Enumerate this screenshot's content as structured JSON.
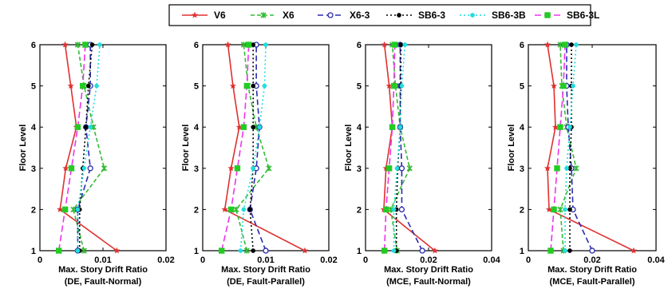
{
  "chart_data": [
    {
      "type": "line",
      "xlabel": "Max. Story Drift Ratio",
      "xlabel2": "(DE, Fault-Normal)",
      "ylabel": "Floor Level",
      "xlim": [
        0,
        0.02
      ],
      "ylim": [
        1,
        6
      ],
      "xticks": [
        "0",
        "0.01",
        "0.02"
      ],
      "yticks": [
        "1",
        "2",
        "3",
        "4",
        "5",
        "6"
      ],
      "series": [
        {
          "name": "V6",
          "x": [
            0.0122,
            0.0032,
            0.0041,
            0.0058,
            0.0049,
            0.004
          ]
        },
        {
          "name": "X6",
          "x": [
            0.007,
            0.0053,
            0.0102,
            0.0085,
            0.007,
            0.006
          ]
        },
        {
          "name": "X6-3",
          "x": [
            0.006,
            0.006,
            0.008,
            0.0073,
            0.008,
            0.008
          ]
        },
        {
          "name": "SB6-3",
          "x": [
            0.0063,
            0.0063,
            0.0068,
            0.0073,
            0.0077,
            0.0083
          ]
        },
        {
          "name": "SB6-3B",
          "x": [
            0.006,
            0.006,
            0.007,
            0.008,
            0.009,
            0.0095
          ]
        },
        {
          "name": "SB6-3L",
          "x": [
            0.003,
            0.004,
            0.005,
            0.006,
            0.0068,
            0.0072
          ]
        }
      ]
    },
    {
      "type": "line",
      "xlabel": "Max. Story Drift Ratio",
      "xlabel2": "(DE, Fault-Parallel)",
      "ylabel": "Floor Level",
      "xlim": [
        0,
        0.02
      ],
      "ylim": [
        1,
        6
      ],
      "xticks": [
        "0",
        "0.01",
        "0.02"
      ],
      "yticks": [
        "1",
        "2",
        "3",
        "4",
        "5",
        "6"
      ],
      "series": [
        {
          "name": "V6",
          "x": [
            0.0162,
            0.0035,
            0.0045,
            0.0058,
            0.0048,
            0.004
          ]
        },
        {
          "name": "X6",
          "x": [
            0.007,
            0.0053,
            0.0105,
            0.0085,
            0.0072,
            0.0065
          ]
        },
        {
          "name": "X6-3",
          "x": [
            0.01,
            0.0075,
            0.0085,
            0.009,
            0.0085,
            0.0085
          ]
        },
        {
          "name": "SB6-3",
          "x": [
            0.008,
            0.0075,
            0.008,
            0.008,
            0.008,
            0.008
          ]
        },
        {
          "name": "SB6-3B",
          "x": [
            0.006,
            0.0065,
            0.008,
            0.009,
            0.0098,
            0.01
          ]
        },
        {
          "name": "SB6-3L",
          "x": [
            0.003,
            0.0045,
            0.0055,
            0.0065,
            0.007,
            0.0073
          ]
        }
      ]
    },
    {
      "type": "line",
      "xlabel": "Max. Story Drift Ratio",
      "xlabel2": "(MCE, Fault-Normal)",
      "ylabel": "Floor Level",
      "xlim": [
        0,
        0.04
      ],
      "ylim": [
        1,
        6
      ],
      "xticks": [
        "0",
        "0.02",
        "0.04"
      ],
      "yticks": [
        "1",
        "2",
        "3",
        "4",
        "5",
        "6"
      ],
      "series": [
        {
          "name": "V6",
          "x": [
            0.022,
            0.0058,
            0.0065,
            0.0085,
            0.0075,
            0.006
          ]
        },
        {
          "name": "X6",
          "x": [
            0.01,
            0.008,
            0.014,
            0.011,
            0.0095,
            0.0085
          ]
        },
        {
          "name": "X6-3",
          "x": [
            0.018,
            0.0115,
            0.0115,
            0.011,
            0.011,
            0.011
          ]
        },
        {
          "name": "SB6-3",
          "x": [
            0.0098,
            0.0098,
            0.0102,
            0.011,
            0.0112,
            0.0112
          ]
        },
        {
          "name": "SB6-3B",
          "x": [
            0.009,
            0.009,
            0.01,
            0.011,
            0.0115,
            0.0125
          ]
        },
        {
          "name": "SB6-3L",
          "x": [
            0.006,
            0.0065,
            0.0075,
            0.0085,
            0.009,
            0.0093
          ]
        }
      ]
    },
    {
      "type": "line",
      "xlabel": "Max. Story Drift Ratio",
      "xlabel2": "(MCE, Fault-Parallel)",
      "ylabel": "Floor Level",
      "xlim": [
        0,
        0.04
      ],
      "ylim": [
        1,
        6
      ],
      "xticks": [
        "0",
        "0.02",
        "0.04"
      ],
      "yticks": [
        "1",
        "2",
        "3",
        "4",
        "5",
        "6"
      ],
      "series": [
        {
          "name": "V6",
          "x": [
            0.033,
            0.0065,
            0.006,
            0.0085,
            0.008,
            0.006
          ]
        },
        {
          "name": "X6",
          "x": [
            0.011,
            0.01,
            0.015,
            0.012,
            0.0105,
            0.01
          ]
        },
        {
          "name": "X6-3",
          "x": [
            0.02,
            0.014,
            0.0135,
            0.0125,
            0.012,
            0.012
          ]
        },
        {
          "name": "SB6-3",
          "x": [
            0.013,
            0.013,
            0.013,
            0.0135,
            0.0135,
            0.0135
          ]
        },
        {
          "name": "SB6-3B",
          "x": [
            0.0115,
            0.0115,
            0.012,
            0.013,
            0.014,
            0.015
          ]
        },
        {
          "name": "SB6-3L",
          "x": [
            0.007,
            0.008,
            0.009,
            0.01,
            0.011,
            0.0115
          ]
        }
      ]
    }
  ],
  "legend": {
    "placement": "top-center",
    "entries": [
      {
        "name": "V6",
        "color": "#e03030",
        "marker": "star"
      },
      {
        "name": "X6",
        "color": "#33bb33",
        "marker": "x"
      },
      {
        "name": "X6-3",
        "color": "#2a2ab0",
        "marker": "circle"
      },
      {
        "name": "SB6-3",
        "color": "#000000",
        "marker": "dot"
      },
      {
        "name": "SB6-3B",
        "color": "#22dddd",
        "marker": "dot"
      },
      {
        "name": "SB6-3L",
        "color": "#ee33ee",
        "marker": "square-green"
      }
    ]
  },
  "styles": {
    "V6": {
      "color": "#e03030",
      "dash": "",
      "marker": "star"
    },
    "X6": {
      "color": "#33bb33",
      "dash": "5,3",
      "marker": "x"
    },
    "X6-3": {
      "color": "#2a2ab0",
      "dash": "7,4",
      "marker": "circle"
    },
    "SB6-3": {
      "color": "#000000",
      "dash": "2,3",
      "marker": "dot"
    },
    "SB6-3B": {
      "color": "#22dddd",
      "dash": "2,3",
      "marker": "dot"
    },
    "SB6-3L": {
      "color": "#ee33ee",
      "dash": "8,4",
      "marker": "square-green"
    },
    "marker_green": "#22cc22"
  },
  "y_values": [
    1,
    2,
    3,
    4,
    5,
    6
  ]
}
